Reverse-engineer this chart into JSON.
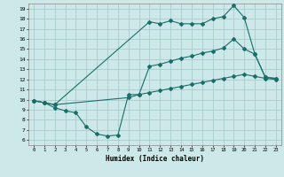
{
  "xlabel": "Humidex (Indice chaleur)",
  "bg_color": "#cce8e8",
  "grid_color": "#aacccc",
  "line_color": "#1a6e6a",
  "xlim": [
    -0.5,
    23.5
  ],
  "ylim": [
    5.5,
    19.5
  ],
  "yticks": [
    6,
    7,
    8,
    9,
    10,
    11,
    12,
    13,
    14,
    15,
    16,
    17,
    18,
    19
  ],
  "xticks": [
    0,
    1,
    2,
    3,
    4,
    5,
    6,
    7,
    8,
    9,
    10,
    11,
    12,
    13,
    14,
    15,
    16,
    17,
    18,
    19,
    20,
    21,
    22,
    23
  ],
  "line1_x": [
    0,
    1,
    2,
    3,
    4,
    5,
    6,
    7,
    8,
    9,
    10,
    11,
    12,
    13,
    14,
    15,
    16,
    17,
    18,
    19,
    20,
    21,
    22,
    23
  ],
  "line1_y": [
    9.9,
    9.7,
    9.2,
    8.9,
    8.7,
    7.3,
    6.6,
    6.4,
    6.5,
    10.5,
    10.5,
    10.7,
    10.9,
    11.1,
    11.3,
    11.5,
    11.7,
    11.9,
    12.1,
    12.3,
    12.5,
    12.3,
    12.1,
    12.0
  ],
  "line2_x": [
    0,
    1,
    2,
    11,
    12,
    13,
    14,
    15,
    16,
    17,
    18,
    19,
    20,
    21,
    22,
    23
  ],
  "line2_y": [
    9.9,
    9.7,
    9.5,
    17.7,
    17.5,
    17.8,
    17.5,
    17.5,
    17.5,
    18.0,
    18.2,
    19.3,
    18.1,
    14.5,
    12.2,
    12.1
  ],
  "line3_x": [
    0,
    1,
    2,
    9,
    10,
    11,
    12,
    13,
    14,
    15,
    16,
    17,
    18,
    19,
    20,
    21,
    22,
    23
  ],
  "line3_y": [
    9.9,
    9.7,
    9.5,
    10.2,
    10.5,
    13.3,
    13.5,
    13.8,
    14.1,
    14.3,
    14.6,
    14.8,
    15.1,
    16.0,
    15.0,
    14.5,
    12.2,
    12.1
  ]
}
